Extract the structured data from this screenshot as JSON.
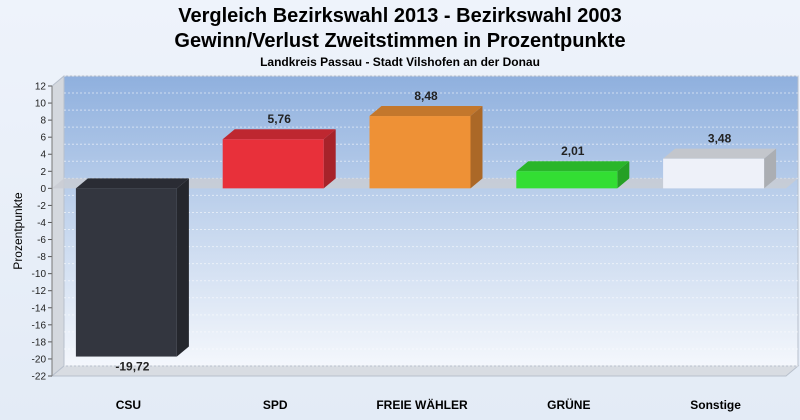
{
  "chart_data": {
    "type": "bar",
    "title": "Vergleich Bezirkswahl 2013 - Bezirkswahl 2003",
    "subtitle": "Gewinn/Verlust Zweitstimmen in Prozentpunkte",
    "caption": "Landkreis Passau - Stadt Vilshofen an der Donau",
    "ylabel": "Prozentpunkte",
    "xlabel": "",
    "categories": [
      "CSU",
      "SPD",
      "FREIE WÄHLER",
      "GRÜNE",
      "Sonstige"
    ],
    "values": [
      -19.72,
      5.76,
      8.48,
      2.01,
      3.48
    ],
    "value_labels": [
      "-19,72",
      "5,76",
      "8,48",
      "2,01",
      "3,48"
    ],
    "colors": [
      "#33363f",
      "#e8303a",
      "#ee9136",
      "#33de33",
      "#eef1f9"
    ],
    "ylim": [
      -22,
      12
    ],
    "yticks": [
      12,
      10,
      8,
      6,
      4,
      2,
      0,
      -2,
      -4,
      -6,
      -8,
      -10,
      -12,
      -14,
      -16,
      -18,
      -20,
      -22
    ],
    "grid": true,
    "legend": "none"
  }
}
